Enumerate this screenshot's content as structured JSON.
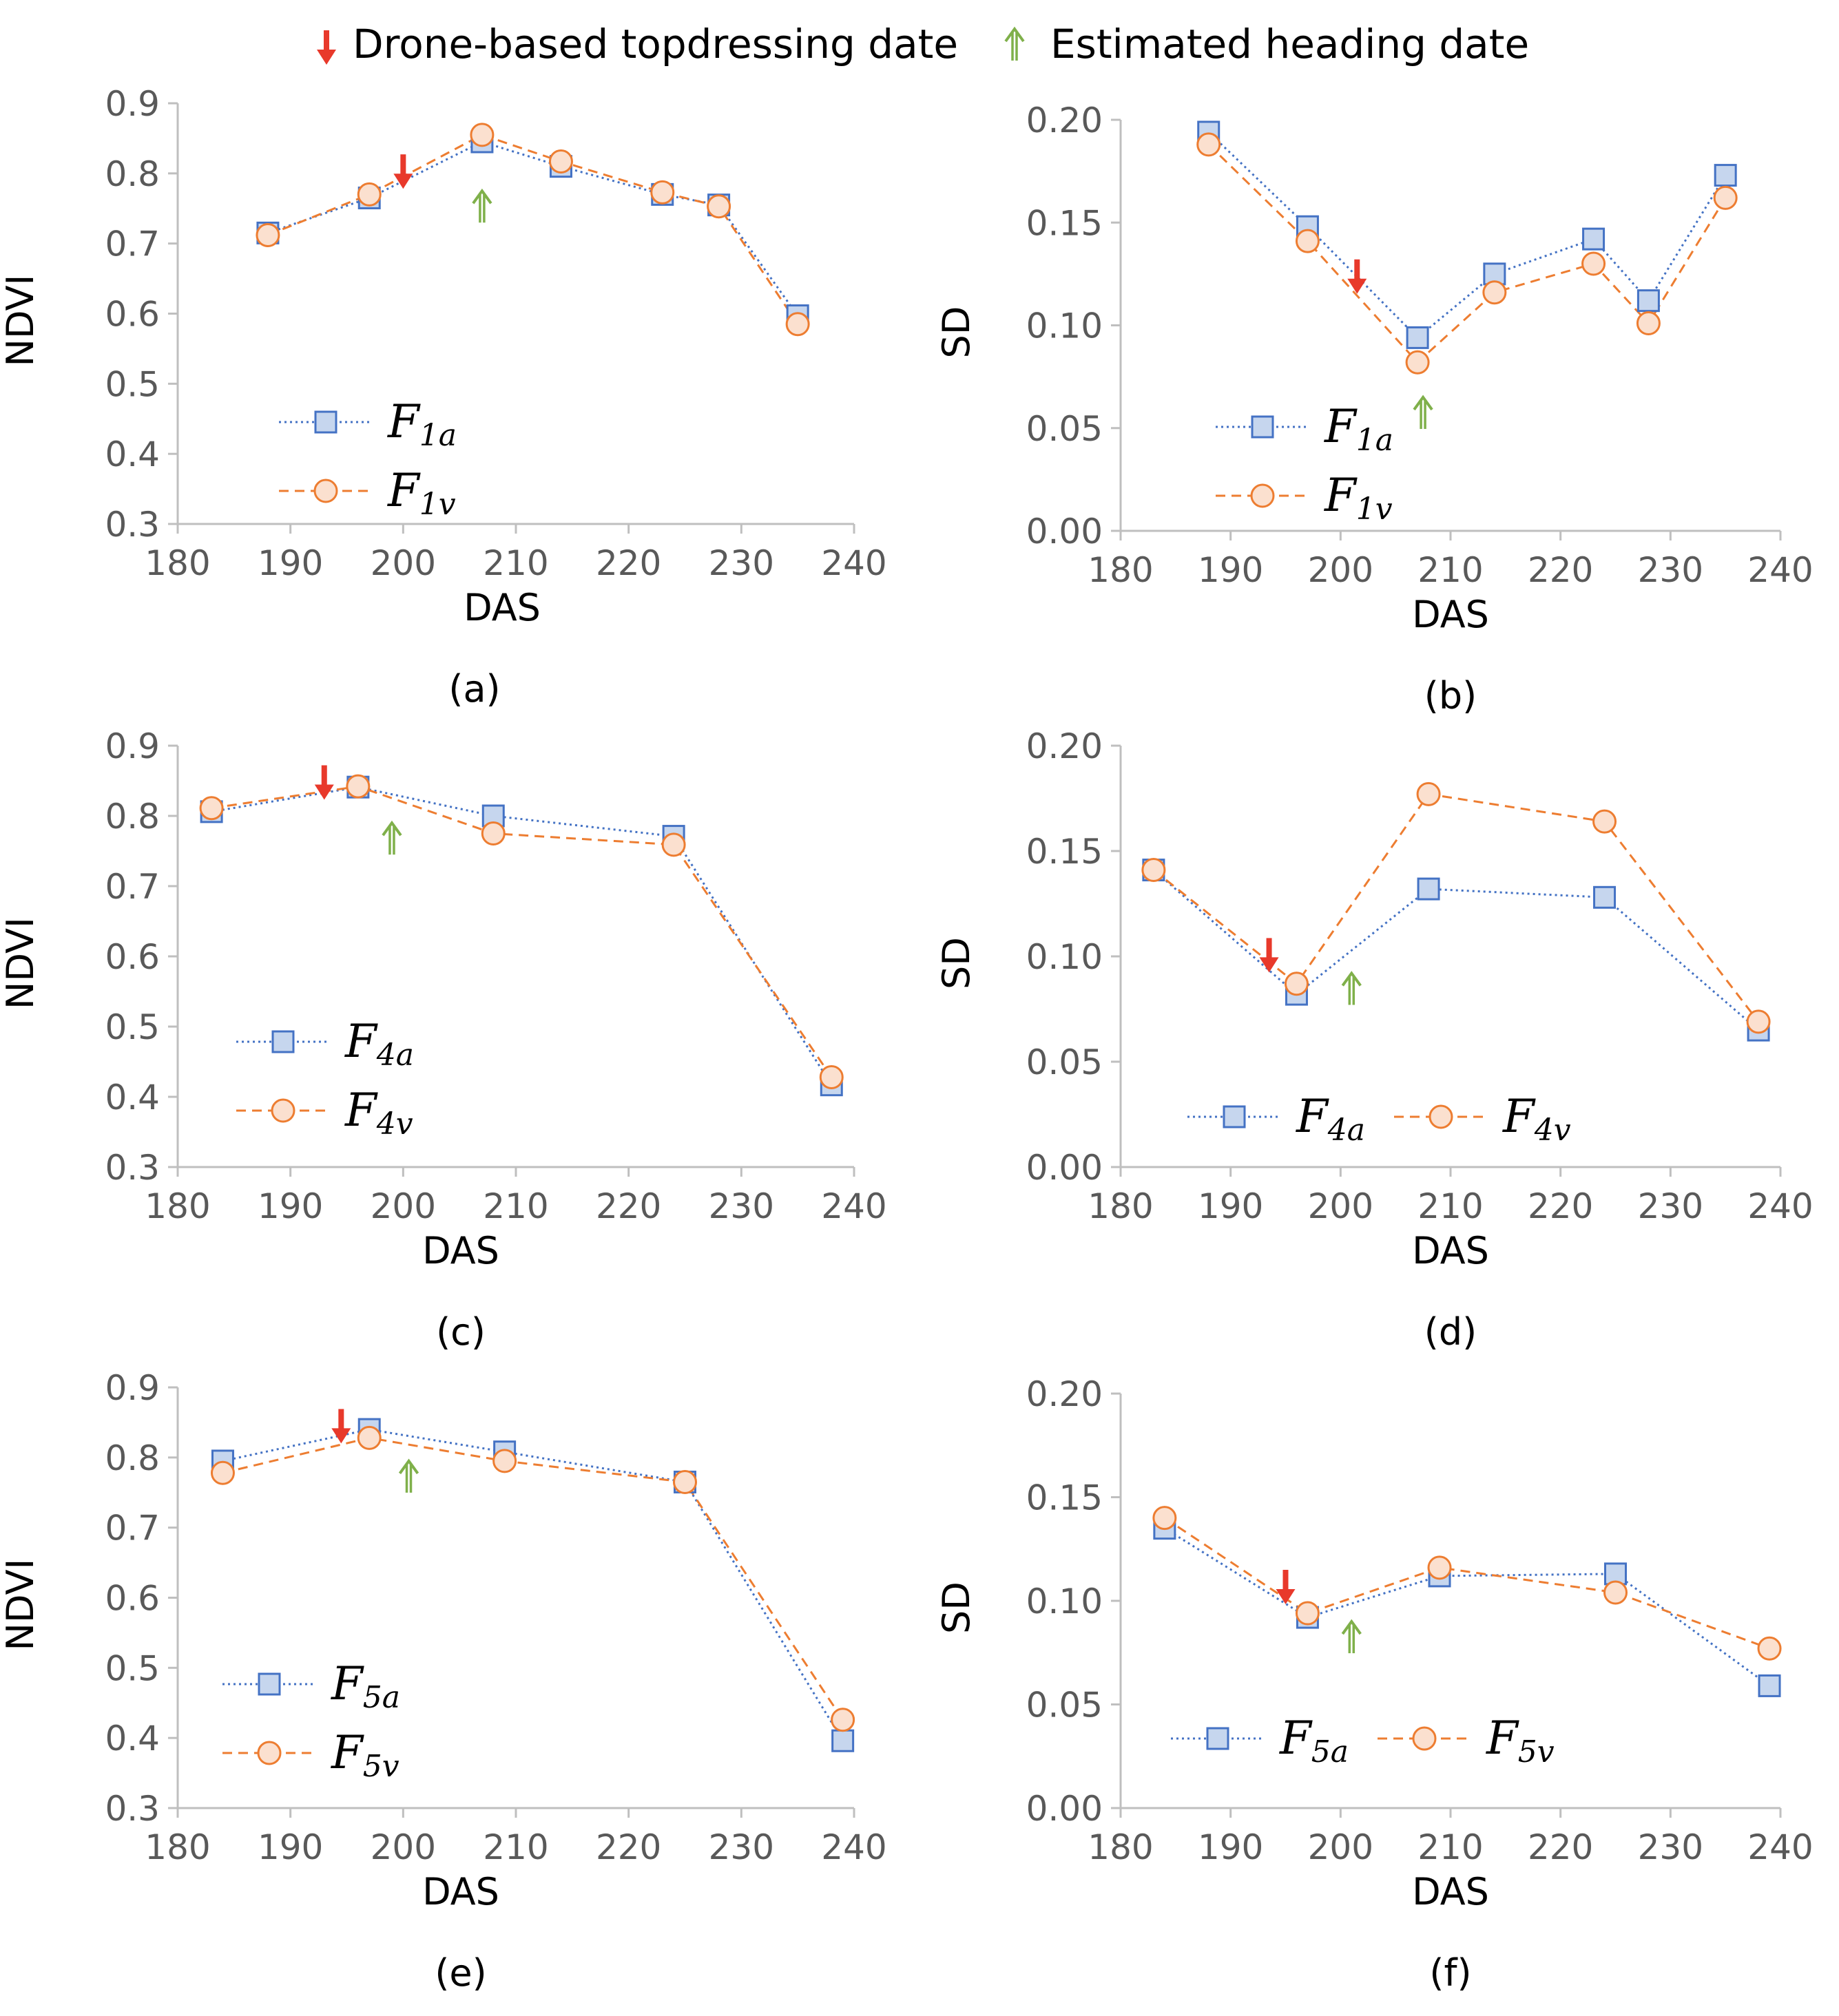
{
  "top_legend": {
    "topdress_label": "Drone-based topdressing date",
    "heading_label": "Estimated heading date",
    "topdress_color": "#e8392b",
    "heading_color": "#7fb04a"
  },
  "colors": {
    "series_a_line": "#4472c4",
    "series_a_fill": "#c6d6ee",
    "series_v_line": "#ed7d31",
    "series_v_fill": "#fbe0cf",
    "axis": "#bfbfbf"
  },
  "chart_data": [
    {
      "id": "a",
      "type": "line",
      "caption": "(a)",
      "xlabel": "DAS",
      "ylabel": "NDVI",
      "xlim": [
        180,
        240
      ],
      "ylim": [
        0.3,
        0.9
      ],
      "xticks": [
        "180",
        "190",
        "200",
        "210",
        "220",
        "230",
        "240"
      ],
      "yticks": [
        "0.3",
        "0.4",
        "0.5",
        "0.6",
        "0.7",
        "0.8",
        "0.9"
      ],
      "legend_layout": "stacked",
      "legend_position": "lower-left",
      "series": [
        {
          "name": "F",
          "sub": "1a",
          "style": "square",
          "x": [
            188,
            197,
            207,
            214,
            223,
            228,
            235
          ],
          "y": [
            0.715,
            0.765,
            0.845,
            0.81,
            0.77,
            0.755,
            0.597
          ]
        },
        {
          "name": "F",
          "sub": "1v",
          "style": "circle",
          "x": [
            188,
            197,
            207,
            214,
            223,
            228,
            235
          ],
          "y": [
            0.712,
            0.77,
            0.855,
            0.817,
            0.773,
            0.753,
            0.585
          ]
        }
      ],
      "topdress": {
        "x": 200,
        "y": 0.78
      },
      "heading": {
        "x": 207,
        "y": 0.775
      }
    },
    {
      "id": "b",
      "type": "line",
      "caption": "(b)",
      "xlabel": "DAS",
      "ylabel": "SD",
      "xlim": [
        180,
        240
      ],
      "ylim": [
        0,
        0.2
      ],
      "xticks": [
        "180",
        "190",
        "200",
        "210",
        "220",
        "230",
        "240"
      ],
      "yticks": [
        "0.00",
        "0.05",
        "0.10",
        "0.15",
        "0.20"
      ],
      "legend_layout": "stacked",
      "legend_position": "lower-left",
      "series": [
        {
          "name": "F",
          "sub": "1a",
          "style": "square",
          "x": [
            188,
            197,
            207,
            214,
            223,
            228,
            235
          ],
          "y": [
            0.194,
            0.148,
            0.094,
            0.125,
            0.142,
            0.112,
            0.173
          ]
        },
        {
          "name": "F",
          "sub": "1v",
          "style": "circle",
          "x": [
            188,
            197,
            207,
            214,
            223,
            228,
            235
          ],
          "y": [
            0.188,
            0.141,
            0.082,
            0.116,
            0.13,
            0.101,
            0.162
          ]
        }
      ],
      "topdress": {
        "x": 201.5,
        "y": 0.116
      },
      "heading": {
        "x": 207.5,
        "y": 0.065
      }
    },
    {
      "id": "c",
      "type": "line",
      "caption": "(c)",
      "xlabel": "DAS",
      "ylabel": "NDVI",
      "xlim": [
        180,
        240
      ],
      "ylim": [
        0.3,
        0.9
      ],
      "xticks": [
        "180",
        "190",
        "200",
        "210",
        "220",
        "230",
        "240"
      ],
      "yticks": [
        "0.3",
        "0.4",
        "0.5",
        "0.6",
        "0.7",
        "0.8",
        "0.9"
      ],
      "legend_layout": "stacked",
      "legend_position": "lower-left",
      "series": [
        {
          "name": "F",
          "sub": "4a",
          "style": "square",
          "x": [
            183,
            196,
            208,
            224,
            238
          ],
          "y": [
            0.806,
            0.841,
            0.8,
            0.771,
            0.417
          ]
        },
        {
          "name": "F",
          "sub": "4v",
          "style": "circle",
          "x": [
            183,
            196,
            208,
            224,
            238
          ],
          "y": [
            0.811,
            0.842,
            0.775,
            0.759,
            0.428
          ]
        }
      ],
      "topdress": {
        "x": 193,
        "y": 0.825
      },
      "heading": {
        "x": 199,
        "y": 0.79
      }
    },
    {
      "id": "d",
      "type": "line",
      "caption": "(d)",
      "xlabel": "DAS",
      "ylabel": "SD",
      "xlim": [
        180,
        240
      ],
      "ylim": [
        0,
        0.2
      ],
      "xticks": [
        "180",
        "190",
        "200",
        "210",
        "220",
        "230",
        "240"
      ],
      "yticks": [
        "0.00",
        "0.05",
        "0.10",
        "0.15",
        "0.20"
      ],
      "legend_layout": "inline",
      "legend_position": "bottom",
      "series": [
        {
          "name": "F",
          "sub": "4a",
          "style": "square",
          "x": [
            183,
            196,
            208,
            224,
            238
          ],
          "y": [
            0.141,
            0.082,
            0.132,
            0.128,
            0.065
          ]
        },
        {
          "name": "F",
          "sub": "4v",
          "style": "circle",
          "x": [
            183,
            196,
            208,
            224,
            238
          ],
          "y": [
            0.141,
            0.087,
            0.177,
            0.164,
            0.069
          ]
        }
      ],
      "topdress": {
        "x": 193.5,
        "y": 0.093
      },
      "heading": {
        "x": 201,
        "y": 0.092
      }
    },
    {
      "id": "e",
      "type": "line",
      "caption": "(e)",
      "xlabel": "DAS",
      "ylabel": "NDVI",
      "xlim": [
        180,
        240
      ],
      "ylim": [
        0.3,
        0.9
      ],
      "xticks": [
        "180",
        "190",
        "200",
        "210",
        "220",
        "230",
        "240"
      ],
      "yticks": [
        "0.3",
        "0.4",
        "0.5",
        "0.6",
        "0.7",
        "0.8",
        "0.9"
      ],
      "legend_layout": "stacked",
      "legend_position": "lower-left",
      "series": [
        {
          "name": "F",
          "sub": "5a",
          "style": "square",
          "x": [
            184,
            197,
            209,
            225,
            239
          ],
          "y": [
            0.795,
            0.84,
            0.808,
            0.765,
            0.396
          ]
        },
        {
          "name": "F",
          "sub": "5v",
          "style": "circle",
          "x": [
            184,
            197,
            209,
            225,
            239
          ],
          "y": [
            0.778,
            0.828,
            0.795,
            0.765,
            0.426
          ]
        }
      ],
      "topdress": {
        "x": 194.5,
        "y": 0.822
      },
      "heading": {
        "x": 200.5,
        "y": 0.795
      }
    },
    {
      "id": "f",
      "type": "line",
      "caption": "(f)",
      "xlabel": "DAS",
      "ylabel": "SD",
      "xlim": [
        180,
        240
      ],
      "ylim": [
        0,
        0.2
      ],
      "xticks": [
        "180",
        "190",
        "200",
        "210",
        "220",
        "230",
        "240"
      ],
      "yticks": [
        "0.00",
        "0.05",
        "0.10",
        "0.15",
        "0.20"
      ],
      "legend_layout": "inline",
      "legend_position": "bottom",
      "series": [
        {
          "name": "F",
          "sub": "5a",
          "style": "square",
          "x": [
            184,
            197,
            209,
            225,
            239
          ],
          "y": [
            0.135,
            0.092,
            0.112,
            0.113,
            0.059
          ]
        },
        {
          "name": "F",
          "sub": "5v",
          "style": "circle",
          "x": [
            184,
            197,
            209,
            225,
            239
          ],
          "y": [
            0.14,
            0.094,
            0.116,
            0.104,
            0.077
          ]
        }
      ],
      "topdress": {
        "x": 195,
        "y": 0.099
      },
      "heading": {
        "x": 201,
        "y": 0.09
      }
    }
  ]
}
